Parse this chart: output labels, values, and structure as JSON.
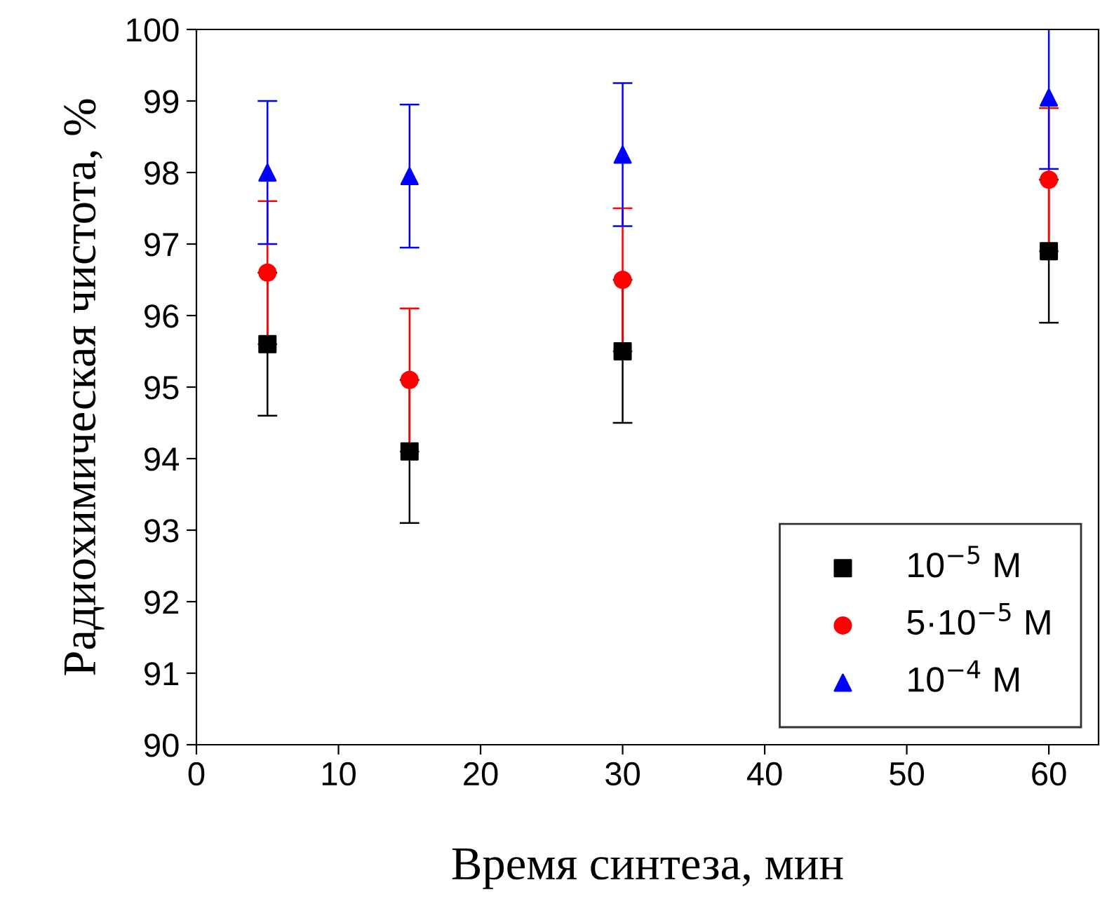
{
  "chart_data": {
    "type": "scatter",
    "xlabel": "Время синтеза, мин",
    "ylabel": "Радиохимическая чистота, %",
    "x": [
      5,
      15,
      30,
      60
    ],
    "series": [
      {
        "name": "10$^{−5}$ M",
        "color": "#000000",
        "marker": "square",
        "values": [
          95.6,
          94.1,
          95.5,
          96.9
        ],
        "errors": [
          1,
          1,
          1,
          1
        ]
      },
      {
        "name": "5·10$^{−5}$ M",
        "color": "#ff0000",
        "marker": "circle",
        "values": [
          96.6,
          95.1,
          96.5,
          97.9
        ],
        "errors": [
          1,
          1,
          1,
          1
        ]
      },
      {
        "name": "10$^{−4}$ M",
        "color": "#0000ff",
        "marker": "triangle",
        "values": [
          98.0,
          97.95,
          98.25,
          99.05
        ],
        "errors": [
          1,
          1,
          1,
          1
        ]
      }
    ],
    "xlim": [
      0,
      63.5
    ],
    "xticks": [
      0,
      10,
      20,
      30,
      40,
      50,
      60
    ],
    "ylim": [
      90,
      100
    ],
    "yticks": [
      90,
      91,
      92,
      93,
      94,
      95,
      96,
      97,
      98,
      99,
      100
    ],
    "grid": false,
    "legend": "bottom right"
  }
}
